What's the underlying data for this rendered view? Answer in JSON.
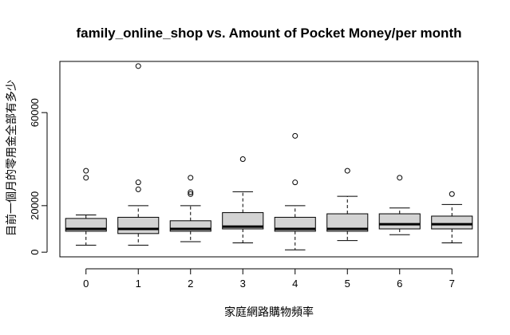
{
  "chart_data": {
    "type": "boxplot",
    "title": "family_online_shop vs. Amount of Pocket Money/per month",
    "xlabel": "家庭網路購物頻率",
    "ylabel": "目前一個月的零用金全部有多少",
    "categories": [
      "0",
      "1",
      "2",
      "3",
      "4",
      "5",
      "6",
      "7"
    ],
    "yticks": [
      0,
      20000,
      60000
    ],
    "ylim": [
      -2000,
      82000
    ],
    "box_fill": "#d3d3d3",
    "boxes": [
      {
        "category": "0",
        "whisker_low": 3000,
        "q1": 9000,
        "median": 10000,
        "q3": 14500,
        "whisker_high": 16000,
        "outliers": [
          32000,
          35000
        ]
      },
      {
        "category": "1",
        "whisker_low": 3000,
        "q1": 8000,
        "median": 10000,
        "q3": 15000,
        "whisker_high": 20000,
        "outliers": [
          27000,
          30000,
          80000
        ]
      },
      {
        "category": "2",
        "whisker_low": 4500,
        "q1": 9000,
        "median": 10000,
        "q3": 13500,
        "whisker_high": 20000,
        "outliers": [
          25000,
          25800,
          32000
        ]
      },
      {
        "category": "3",
        "whisker_low": 4000,
        "q1": 10000,
        "median": 11000,
        "q3": 17000,
        "whisker_high": 26000,
        "outliers": [
          40000
        ]
      },
      {
        "category": "4",
        "whisker_low": 1000,
        "q1": 9000,
        "median": 10000,
        "q3": 15000,
        "whisker_high": 20000,
        "outliers": [
          30000,
          50000
        ]
      },
      {
        "category": "5",
        "whisker_low": 5000,
        "q1": 9000,
        "median": 10000,
        "q3": 16500,
        "whisker_high": 24000,
        "outliers": [
          35000
        ]
      },
      {
        "category": "6",
        "whisker_low": 7500,
        "q1": 10000,
        "median": 12000,
        "q3": 16500,
        "whisker_high": 19000,
        "outliers": [
          32000
        ]
      },
      {
        "category": "7",
        "whisker_low": 4000,
        "q1": 10000,
        "median": 12000,
        "q3": 15500,
        "whisker_high": 20500,
        "outliers": [
          25000
        ]
      }
    ]
  }
}
